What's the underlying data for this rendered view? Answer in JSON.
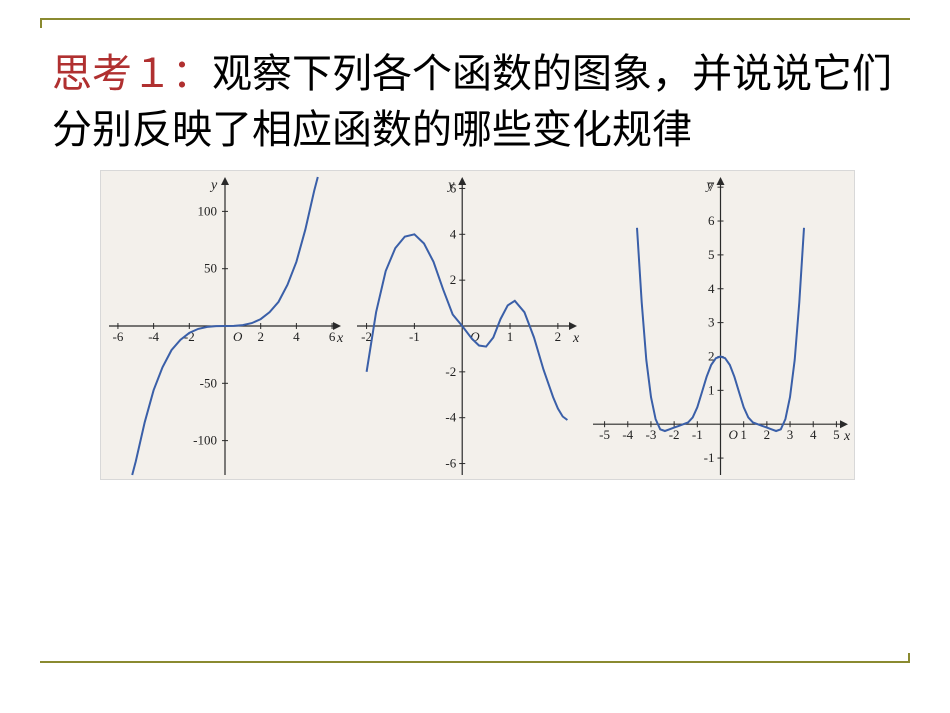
{
  "frame": {
    "color": "#8a8a30"
  },
  "heading": {
    "think_label": "思考１：",
    "think_color": "#b03030",
    "rest": "观察下列各个函数的图象，并说说它们分别反映了相应函数的哪些变化规律",
    "fontsize_pt": 30
  },
  "figure": {
    "background_color": "#f3f0eb",
    "curve_color": "#3a5fa8",
    "axis_color": "#2a2a2a",
    "axis_label_fontsize": 14,
    "tick_label_fontsize": 13,
    "charts": [
      {
        "id": "chart1",
        "type": "line",
        "xlim": [
          -6.5,
          6.5
        ],
        "ylim": [
          -130,
          130
        ],
        "xticks": [
          -6,
          -4,
          -2,
          2,
          4,
          6
        ],
        "yticks": [
          -100,
          -50,
          50,
          100
        ],
        "xlabel": "x",
        "ylabel": "y",
        "origin_label": "O",
        "points": [
          [
            -5.2,
            -130
          ],
          [
            -5,
            -118
          ],
          [
            -4.5,
            -84
          ],
          [
            -4,
            -56
          ],
          [
            -3.5,
            -36
          ],
          [
            -3,
            -21
          ],
          [
            -2.5,
            -12
          ],
          [
            -2,
            -6
          ],
          [
            -1.5,
            -2.5
          ],
          [
            -1,
            -0.8
          ],
          [
            -0.5,
            -0.1
          ],
          [
            0,
            0
          ],
          [
            0.5,
            0.1
          ],
          [
            1,
            0.8
          ],
          [
            1.5,
            2.5
          ],
          [
            2,
            6
          ],
          [
            2.5,
            12
          ],
          [
            3,
            21
          ],
          [
            3.5,
            36
          ],
          [
            4,
            56
          ],
          [
            4.5,
            84
          ],
          [
            5,
            118
          ],
          [
            5.2,
            130
          ]
        ]
      },
      {
        "id": "chart2",
        "type": "line",
        "xlim": [
          -2.2,
          2.4
        ],
        "ylim": [
          -6.5,
          6.5
        ],
        "xticks": [
          -2,
          -1,
          1,
          2
        ],
        "yticks": [
          -6,
          -4,
          -2,
          2,
          4,
          6
        ],
        "xlabel": "x",
        "ylabel": "y",
        "origin_label": "O",
        "points": [
          [
            -2.0,
            -2.0
          ],
          [
            -1.8,
            0.6
          ],
          [
            -1.6,
            2.4
          ],
          [
            -1.4,
            3.4
          ],
          [
            -1.2,
            3.9
          ],
          [
            -1.0,
            4.0
          ],
          [
            -0.8,
            3.6
          ],
          [
            -0.6,
            2.8
          ],
          [
            -0.4,
            1.6
          ],
          [
            -0.2,
            0.5
          ],
          [
            0,
            0
          ],
          [
            0.2,
            -0.55
          ],
          [
            0.35,
            -0.85
          ],
          [
            0.5,
            -0.9
          ],
          [
            0.65,
            -0.5
          ],
          [
            0.8,
            0.3
          ],
          [
            0.95,
            0.9
          ],
          [
            1.1,
            1.1
          ],
          [
            1.3,
            0.6
          ],
          [
            1.5,
            -0.5
          ],
          [
            1.7,
            -1.9
          ],
          [
            1.9,
            -3.1
          ],
          [
            2.0,
            -3.6
          ],
          [
            2.1,
            -3.95
          ],
          [
            2.2,
            -4.1
          ]
        ]
      },
      {
        "id": "chart3",
        "type": "line",
        "xlim": [
          -5.5,
          5.5
        ],
        "ylim": [
          -1.5,
          7.3
        ],
        "xticks": [
          -5,
          -4,
          -3,
          -2,
          -1,
          1,
          2,
          3,
          4,
          5
        ],
        "yticks": [
          -1,
          1,
          2,
          3,
          4,
          5,
          6,
          7
        ],
        "xlabel": "x",
        "ylabel": "y",
        "origin_label": "O",
        "points": [
          [
            -3.6,
            5.8
          ],
          [
            -3.4,
            3.6
          ],
          [
            -3.2,
            1.9
          ],
          [
            -3.0,
            0.8
          ],
          [
            -2.8,
            0.15
          ],
          [
            -2.6,
            -0.15
          ],
          [
            -2.4,
            -0.2
          ],
          [
            -2.2,
            -0.15
          ],
          [
            -2.0,
            -0.1
          ],
          [
            -1.8,
            -0.05
          ],
          [
            -1.6,
            0
          ],
          [
            -1.4,
            0.05
          ],
          [
            -1.2,
            0.2
          ],
          [
            -1.0,
            0.5
          ],
          [
            -0.8,
            0.95
          ],
          [
            -0.6,
            1.4
          ],
          [
            -0.4,
            1.75
          ],
          [
            -0.2,
            1.95
          ],
          [
            0,
            2.0
          ],
          [
            0.2,
            1.95
          ],
          [
            0.4,
            1.75
          ],
          [
            0.6,
            1.4
          ],
          [
            0.8,
            0.95
          ],
          [
            1.0,
            0.5
          ],
          [
            1.2,
            0.2
          ],
          [
            1.4,
            0.05
          ],
          [
            1.6,
            0
          ],
          [
            1.8,
            -0.05
          ],
          [
            2.0,
            -0.1
          ],
          [
            2.2,
            -0.15
          ],
          [
            2.4,
            -0.2
          ],
          [
            2.6,
            -0.15
          ],
          [
            2.8,
            0.15
          ],
          [
            3.0,
            0.8
          ],
          [
            3.2,
            1.9
          ],
          [
            3.4,
            3.6
          ],
          [
            3.6,
            5.8
          ]
        ]
      }
    ]
  }
}
